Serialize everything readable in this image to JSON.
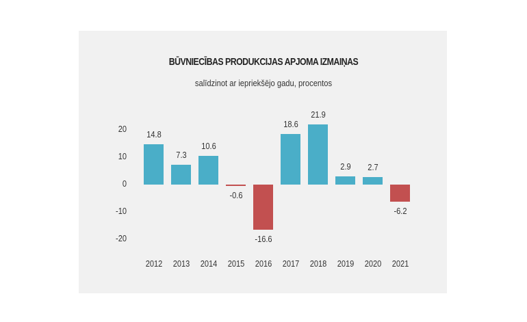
{
  "chart_data": {
    "type": "bar",
    "title": "BŪVNIECĪBAS PRODUKCIJAS APJOMA IZMAIŅAS",
    "subtitle": "salīdzinot ar iepriekšējo gadu, procentos",
    "xlabel": "",
    "ylabel": "",
    "categories": [
      "2012",
      "2013",
      "2014",
      "2015",
      "2016",
      "2017",
      "2018",
      "2019",
      "2020",
      "2021"
    ],
    "values": [
      14.8,
      7.3,
      10.6,
      -0.6,
      -16.6,
      18.6,
      21.9,
      2.9,
      2.7,
      -6.2
    ],
    "value_labels": [
      "14.8",
      "7.3",
      "10.6",
      "-0.6",
      "-16.6",
      "18.6",
      "21.9",
      "2.9",
      "2.7",
      "-6.2"
    ],
    "yticks": [
      20,
      10,
      0,
      -10,
      -20
    ],
    "ytick_labels": [
      "20",
      "10",
      "0",
      "-10",
      "-20"
    ],
    "ylim": [
      -22,
      24
    ],
    "grid": false,
    "legend": null,
    "colors": {
      "positive": "#4aaec8",
      "negative": "#c25050"
    }
  },
  "panel": {
    "background": "#f1f1f1"
  }
}
